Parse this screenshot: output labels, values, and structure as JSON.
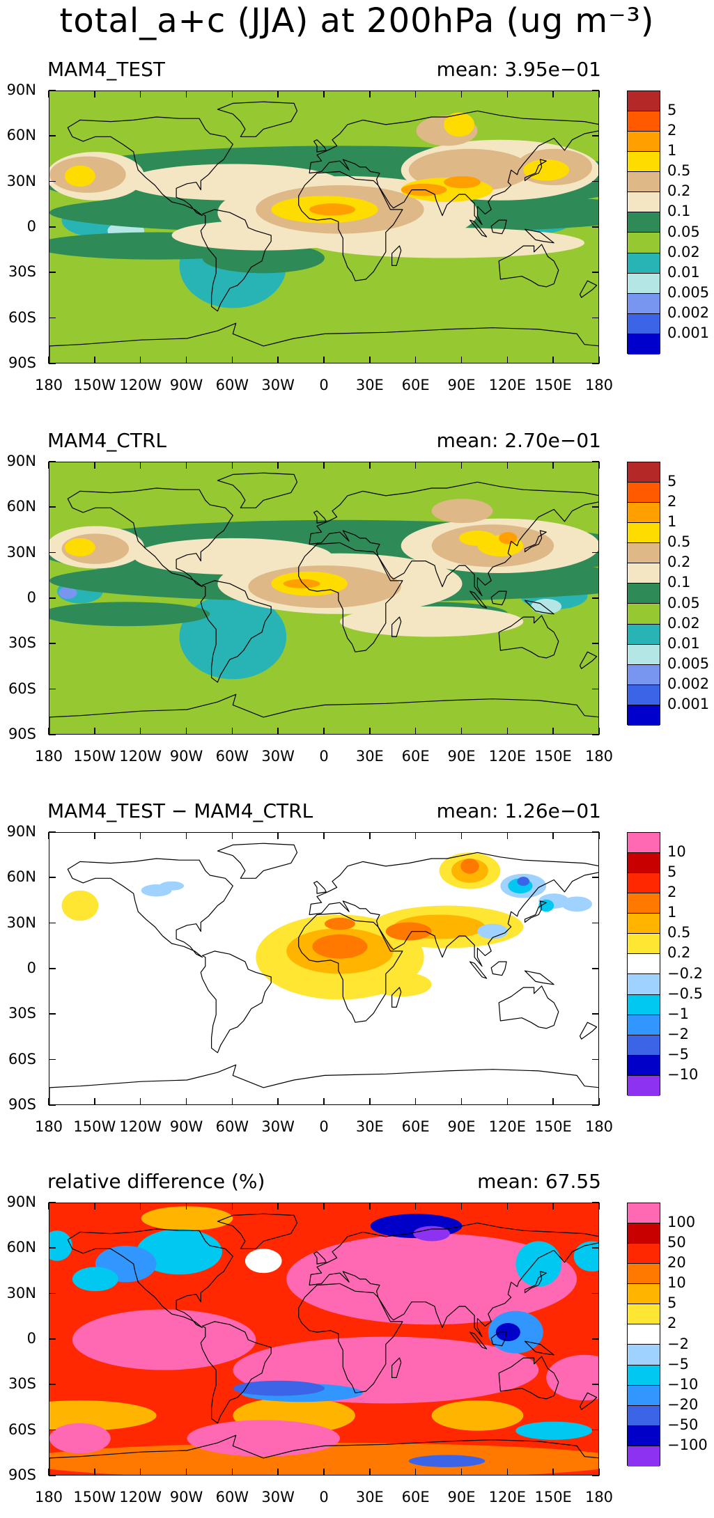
{
  "figure_title": "total_a+c (JJA) at 200hPa (ug m⁻³)",
  "lat_labels": [
    "90N",
    "60N",
    "30N",
    "0",
    "30S",
    "60S",
    "90S"
  ],
  "lon_labels": [
    "180",
    "150W",
    "120W",
    "90W",
    "60W",
    "30W",
    "0",
    "30E",
    "60E",
    "90E",
    "120E",
    "150E",
    "180"
  ],
  "colors": {
    "abs_scale": [
      "#0000cc",
      "#3c64e6",
      "#7896f0",
      "#b4e6e6",
      "#28b4b4",
      "#96c832",
      "#2e8b57",
      "#f5e6c3",
      "#deb887",
      "#ffdc00",
      "#ffa000",
      "#ff5a00",
      "#b42828"
    ],
    "diff_scale": [
      "#8c32f0",
      "#0000c8",
      "#3c64e6",
      "#3296ff",
      "#00c8f0",
      "#a0d2ff",
      "#ffffff",
      "#ffe632",
      "#ffb400",
      "#ff7800",
      "#ff2800",
      "#c80000",
      "#ff69b4"
    ]
  },
  "panels": [
    {
      "title": "MAM4_TEST",
      "mean_label": "mean: 3.95e−01",
      "scale": "abs",
      "contour_levels": [
        "0.001",
        "0.002",
        "0.005",
        "0.01",
        "0.02",
        "0.05",
        "0.1",
        "0.2",
        "0.5",
        "1",
        "2",
        "5"
      ]
    },
    {
      "title": "MAM4_CTRL",
      "mean_label": "mean: 2.70e−01",
      "scale": "abs",
      "contour_levels": [
        "0.001",
        "0.002",
        "0.005",
        "0.01",
        "0.02",
        "0.05",
        "0.1",
        "0.2",
        "0.5",
        "1",
        "2",
        "5"
      ]
    },
    {
      "title": "MAM4_TEST − MAM4_CTRL",
      "mean_label": "mean: 1.26e−01",
      "scale": "diff",
      "contour_levels": [
        "−10",
        "−5",
        "−2",
        "−1",
        "−0.5",
        "−0.2",
        "0.2",
        "0.5",
        "1",
        "2",
        "5",
        "10"
      ]
    },
    {
      "title": "relative difference (%)",
      "mean_label": "mean: 67.55",
      "scale": "diff",
      "contour_levels": [
        "−100",
        "−50",
        "−20",
        "−10",
        "−5",
        "−2",
        "2",
        "5",
        "10",
        "20",
        "50",
        "100"
      ]
    }
  ]
}
